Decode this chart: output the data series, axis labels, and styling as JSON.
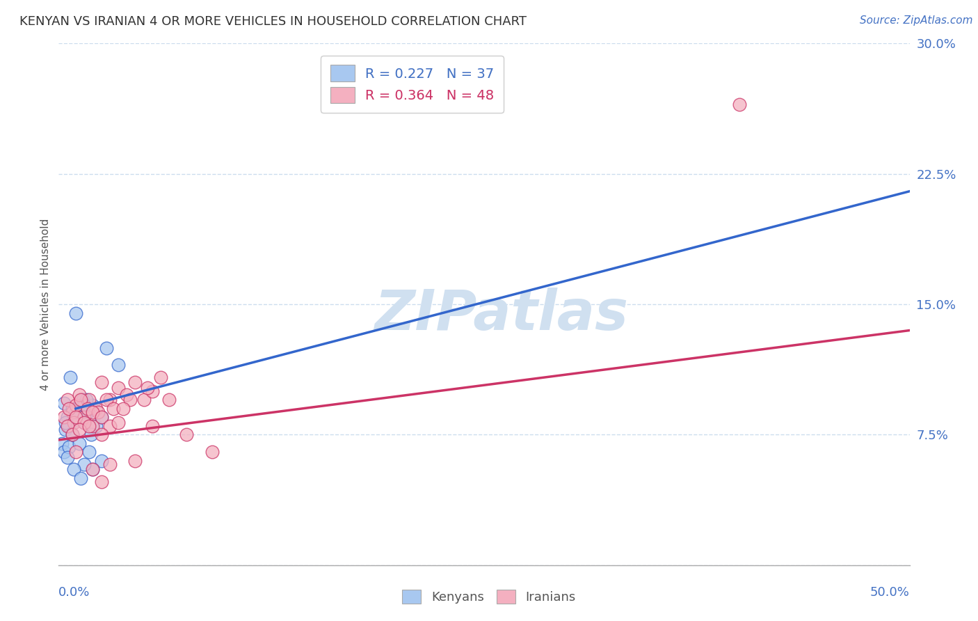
{
  "title": "KENYAN VS IRANIAN 4 OR MORE VEHICLES IN HOUSEHOLD CORRELATION CHART",
  "source": "Source: ZipAtlas.com",
  "ylabel": "4 or more Vehicles in Household",
  "xlim": [
    0.0,
    50.0
  ],
  "ylim": [
    0.0,
    30.0
  ],
  "yticks": [
    0.0,
    7.5,
    15.0,
    22.5,
    30.0
  ],
  "ytick_labels": [
    "",
    "7.5%",
    "15.0%",
    "22.5%",
    "30.0%"
  ],
  "kenyan_color": "#A8C8F0",
  "iranian_color": "#F4B0C0",
  "kenyan_line_color": "#3366CC",
  "iranian_line_color": "#CC3366",
  "kenyan_scatter": [
    [
      0.3,
      9.3
    ],
    [
      0.5,
      8.5
    ],
    [
      0.7,
      10.8
    ],
    [
      0.8,
      9.0
    ],
    [
      1.0,
      14.5
    ],
    [
      1.2,
      8.8
    ],
    [
      1.4,
      9.5
    ],
    [
      1.5,
      8.2
    ],
    [
      1.7,
      8.8
    ],
    [
      1.8,
      9.0
    ],
    [
      2.0,
      9.2
    ],
    [
      2.2,
      8.0
    ],
    [
      2.5,
      8.5
    ],
    [
      0.4,
      7.8
    ],
    [
      0.6,
      8.0
    ],
    [
      0.9,
      8.3
    ],
    [
      1.1,
      9.0
    ],
    [
      1.3,
      8.8
    ],
    [
      1.6,
      9.5
    ],
    [
      1.9,
      7.5
    ],
    [
      0.2,
      7.0
    ],
    [
      0.4,
      8.2
    ],
    [
      0.8,
      7.5
    ],
    [
      1.0,
      8.8
    ],
    [
      1.5,
      9.2
    ],
    [
      2.8,
      12.5
    ],
    [
      3.5,
      11.5
    ],
    [
      0.3,
      6.5
    ],
    [
      0.6,
      6.8
    ],
    [
      1.2,
      7.0
    ],
    [
      1.8,
      6.5
    ],
    [
      2.5,
      6.0
    ],
    [
      2.0,
      5.5
    ],
    [
      1.5,
      5.8
    ],
    [
      0.9,
      5.5
    ],
    [
      1.3,
      5.0
    ],
    [
      0.5,
      6.2
    ]
  ],
  "iranian_scatter": [
    [
      0.5,
      9.5
    ],
    [
      0.8,
      8.8
    ],
    [
      1.0,
      9.2
    ],
    [
      1.2,
      9.8
    ],
    [
      1.5,
      8.5
    ],
    [
      1.8,
      9.5
    ],
    [
      2.0,
      8.0
    ],
    [
      2.2,
      9.0
    ],
    [
      2.5,
      10.5
    ],
    [
      3.0,
      9.5
    ],
    [
      3.5,
      10.2
    ],
    [
      4.0,
      9.8
    ],
    [
      4.5,
      10.5
    ],
    [
      5.0,
      9.5
    ],
    [
      5.5,
      10.0
    ],
    [
      6.0,
      10.8
    ],
    [
      6.5,
      9.5
    ],
    [
      0.3,
      8.5
    ],
    [
      0.6,
      9.0
    ],
    [
      0.9,
      8.2
    ],
    [
      1.3,
      9.5
    ],
    [
      1.7,
      9.0
    ],
    [
      2.3,
      8.8
    ],
    [
      2.8,
      9.5
    ],
    [
      3.2,
      9.0
    ],
    [
      4.2,
      9.5
    ],
    [
      5.2,
      10.2
    ],
    [
      0.5,
      8.0
    ],
    [
      1.0,
      8.5
    ],
    [
      1.5,
      8.2
    ],
    [
      2.0,
      8.8
    ],
    [
      2.5,
      8.5
    ],
    [
      3.0,
      8.0
    ],
    [
      3.8,
      9.0
    ],
    [
      0.8,
      7.5
    ],
    [
      1.2,
      7.8
    ],
    [
      1.8,
      8.0
    ],
    [
      2.5,
      7.5
    ],
    [
      3.5,
      8.2
    ],
    [
      5.5,
      8.0
    ],
    [
      7.5,
      7.5
    ],
    [
      1.0,
      6.5
    ],
    [
      2.0,
      5.5
    ],
    [
      3.0,
      5.8
    ],
    [
      4.5,
      6.0
    ],
    [
      2.5,
      4.8
    ],
    [
      9.0,
      6.5
    ],
    [
      40.0,
      26.5
    ]
  ],
  "kenyan_R": 0.227,
  "kenyan_N": 37,
  "iranian_R": 0.364,
  "iranian_N": 48,
  "kenyan_trend": [
    1.0,
    9.0,
    50.0,
    21.5
  ],
  "kenyan_dashed_trend": [
    1.0,
    9.0,
    50.0,
    21.5
  ],
  "iranian_trend": [
    0.0,
    7.2,
    50.0,
    13.5
  ],
  "background_color": "#FFFFFF",
  "grid_color": "#CCDDEE",
  "watermark_text": "ZIPatlas",
  "watermark_color": "#D0E0F0"
}
